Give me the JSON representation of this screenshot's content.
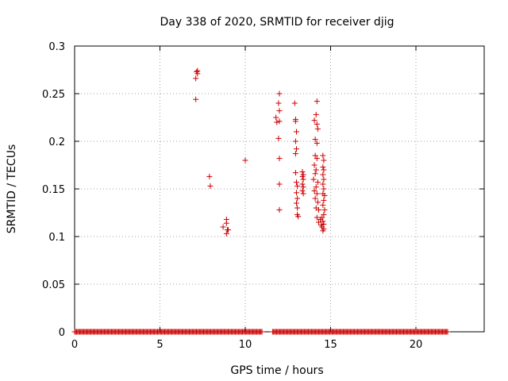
{
  "chart_data": {
    "type": "scatter",
    "title": "Day 338 of 2020, SRMTID for receiver djig",
    "xlabel": "GPS time / hours",
    "ylabel": "SRMTID / TECUs",
    "xlim": [
      0,
      24
    ],
    "ylim": [
      0,
      0.3
    ],
    "xticks": [
      0,
      5,
      10,
      15,
      20
    ],
    "yticks": [
      0,
      0.05,
      0.1,
      0.15,
      0.2,
      0.25,
      0.3
    ],
    "xtick_labels": [
      "0",
      "5",
      "10",
      "15",
      "20"
    ],
    "ytick_labels": [
      "0",
      "0.05",
      "0.1",
      "0.15",
      "0.2",
      "0.25",
      "0.3"
    ],
    "grid": true,
    "marker": "+",
    "color": "#cc0000",
    "baseline_zero_ranges": [
      [
        0.0,
        11.0
      ],
      [
        11.6,
        21.9
      ]
    ],
    "points": [
      [
        7.15,
        0.273
      ],
      [
        7.2,
        0.274
      ],
      [
        7.2,
        0.271
      ],
      [
        7.1,
        0.266
      ],
      [
        7.1,
        0.244
      ],
      [
        7.9,
        0.163
      ],
      [
        7.95,
        0.153
      ],
      [
        8.7,
        0.11
      ],
      [
        8.9,
        0.118
      ],
      [
        8.9,
        0.114
      ],
      [
        8.95,
        0.107
      ],
      [
        8.9,
        0.103
      ],
      [
        9.0,
        0.107
      ],
      [
        10.0,
        0.18
      ],
      [
        11.8,
        0.225
      ],
      [
        11.85,
        0.22
      ],
      [
        12.0,
        0.25
      ],
      [
        11.95,
        0.24
      ],
      [
        12.0,
        0.232
      ],
      [
        12.0,
        0.221
      ],
      [
        11.95,
        0.203
      ],
      [
        12.0,
        0.182
      ],
      [
        12.0,
        0.155
      ],
      [
        12.0,
        0.128
      ],
      [
        12.9,
        0.24
      ],
      [
        12.95,
        0.223
      ],
      [
        12.95,
        0.221
      ],
      [
        13.0,
        0.21
      ],
      [
        12.95,
        0.2
      ],
      [
        13.0,
        0.192
      ],
      [
        12.95,
        0.187
      ],
      [
        12.95,
        0.167
      ],
      [
        13.0,
        0.157
      ],
      [
        13.05,
        0.153
      ],
      [
        13.0,
        0.146
      ],
      [
        13.05,
        0.14
      ],
      [
        13.0,
        0.135
      ],
      [
        13.05,
        0.13
      ],
      [
        13.05,
        0.123
      ],
      [
        13.1,
        0.121
      ],
      [
        13.35,
        0.168
      ],
      [
        13.4,
        0.165
      ],
      [
        13.35,
        0.163
      ],
      [
        13.4,
        0.16
      ],
      [
        13.35,
        0.155
      ],
      [
        13.4,
        0.152
      ],
      [
        13.35,
        0.148
      ],
      [
        13.4,
        0.145
      ],
      [
        14.05,
        0.222
      ],
      [
        14.2,
        0.242
      ],
      [
        14.15,
        0.228
      ],
      [
        14.2,
        0.218
      ],
      [
        14.25,
        0.213
      ],
      [
        14.1,
        0.202
      ],
      [
        14.2,
        0.198
      ],
      [
        14.1,
        0.185
      ],
      [
        14.2,
        0.182
      ],
      [
        14.05,
        0.175
      ],
      [
        14.15,
        0.17
      ],
      [
        14.1,
        0.166
      ],
      [
        14.0,
        0.16
      ],
      [
        14.25,
        0.157
      ],
      [
        14.15,
        0.152
      ],
      [
        14.05,
        0.148
      ],
      [
        14.2,
        0.145
      ],
      [
        14.1,
        0.14
      ],
      [
        14.25,
        0.136
      ],
      [
        14.15,
        0.13
      ],
      [
        14.3,
        0.128
      ],
      [
        14.2,
        0.12
      ],
      [
        14.3,
        0.115
      ],
      [
        14.55,
        0.185
      ],
      [
        14.6,
        0.18
      ],
      [
        14.55,
        0.173
      ],
      [
        14.6,
        0.17
      ],
      [
        14.55,
        0.165
      ],
      [
        14.6,
        0.16
      ],
      [
        14.55,
        0.155
      ],
      [
        14.6,
        0.15
      ],
      [
        14.55,
        0.145
      ],
      [
        14.65,
        0.143
      ],
      [
        14.6,
        0.138
      ],
      [
        14.55,
        0.133
      ],
      [
        14.65,
        0.128
      ],
      [
        14.6,
        0.123
      ],
      [
        14.5,
        0.12
      ],
      [
        14.55,
        0.116
      ],
      [
        14.6,
        0.113
      ],
      [
        14.5,
        0.11
      ],
      [
        14.6,
        0.108
      ],
      [
        14.55,
        0.106
      ],
      [
        14.45,
        0.112
      ],
      [
        14.4,
        0.118
      ]
    ]
  }
}
